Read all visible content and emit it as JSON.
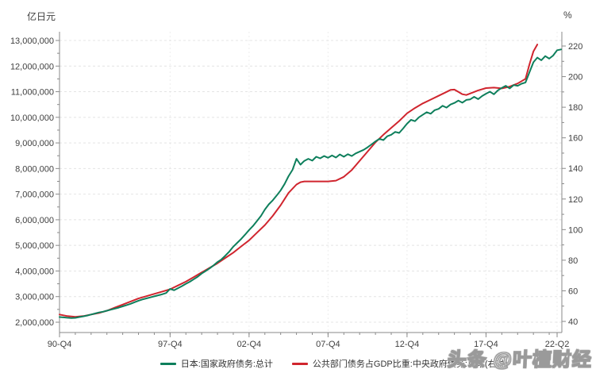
{
  "watermark": {
    "text": "头条 @叶檀财经"
  },
  "chart_data": {
    "type": "line",
    "title": "",
    "y_left_unit": "亿日元",
    "y_right_unit": "%",
    "x_range": [
      1990.75,
      2022.5
    ],
    "y_left_range": [
      2000000,
      13000000
    ],
    "y_right_range": [
      40,
      220
    ],
    "grid": "horizontal-dashed",
    "legend_position": "bottom-center",
    "colors": {
      "series_left": "#0E7F5C",
      "series_right": "#D0252E",
      "grid": "#e4e4e4",
      "grid_vertical": "#ededed",
      "axis": "#8a8a8a",
      "text": "#404040"
    },
    "y_left_ticks": [
      {
        "v": 2000000,
        "label": "2,000,000"
      },
      {
        "v": 3000000,
        "label": "3,000,000"
      },
      {
        "v": 4000000,
        "label": "4,000,000"
      },
      {
        "v": 5000000,
        "label": "5,000,000"
      },
      {
        "v": 6000000,
        "label": "6,000,000"
      },
      {
        "v": 7000000,
        "label": "7,000,000"
      },
      {
        "v": 8000000,
        "label": "8,000,000"
      },
      {
        "v": 9000000,
        "label": "9,000,000"
      },
      {
        "v": 10000000,
        "label": "10,000,000"
      },
      {
        "v": 11000000,
        "label": "11,000,000"
      },
      {
        "v": 12000000,
        "label": "12,000,000"
      },
      {
        "v": 13000000,
        "label": "13,000,000"
      }
    ],
    "y_right_ticks": [
      {
        "v": 40,
        "label": "40"
      },
      {
        "v": 60,
        "label": "60"
      },
      {
        "v": 80,
        "label": "80"
      },
      {
        "v": 100,
        "label": "100"
      },
      {
        "v": 120,
        "label": "120"
      },
      {
        "v": 140,
        "label": "140"
      },
      {
        "v": 160,
        "label": "160"
      },
      {
        "v": 180,
        "label": "180"
      },
      {
        "v": 200,
        "label": "200"
      },
      {
        "v": 220,
        "label": "220"
      }
    ],
    "x_ticks": [
      {
        "t": 1990.75,
        "label": "90-Q4"
      },
      {
        "t": 1997.75,
        "label": "97-Q4"
      },
      {
        "t": 2002.75,
        "label": "02-Q4"
      },
      {
        "t": 2007.75,
        "label": "07-Q4"
      },
      {
        "t": 2012.75,
        "label": "12-Q4"
      },
      {
        "t": 2017.75,
        "label": "17-Q4"
      },
      {
        "t": 2022.25,
        "label": "22-Q2"
      }
    ],
    "series": [
      {
        "name": "公共部门债务占GDP比重:中央政府债务:日本(右轴)",
        "axis": "right",
        "color": "#D0252E",
        "points": [
          [
            1990.75,
            44.5
          ],
          [
            1991.25,
            43.5
          ],
          [
            1991.75,
            43
          ],
          [
            1992.25,
            43.5
          ],
          [
            1992.75,
            44.5
          ],
          [
            1993.25,
            45.5
          ],
          [
            1993.75,
            47
          ],
          [
            1994.25,
            49
          ],
          [
            1994.75,
            51
          ],
          [
            1995.25,
            53
          ],
          [
            1995.75,
            55
          ],
          [
            1996.25,
            56.5
          ],
          [
            1996.75,
            58
          ],
          [
            1997.25,
            59.5
          ],
          [
            1997.75,
            61
          ],
          [
            1998.25,
            63.5
          ],
          [
            1998.75,
            66
          ],
          [
            1999.25,
            69
          ],
          [
            1999.75,
            72
          ],
          [
            2000.25,
            75
          ],
          [
            2000.75,
            78
          ],
          [
            2001.25,
            81.5
          ],
          [
            2001.75,
            85
          ],
          [
            2002.25,
            89
          ],
          [
            2002.75,
            93
          ],
          [
            2003.25,
            98
          ],
          [
            2003.75,
            103
          ],
          [
            2004.25,
            109
          ],
          [
            2004.75,
            116
          ],
          [
            2005.25,
            124
          ],
          [
            2005.75,
            129.5
          ],
          [
            2006,
            131
          ],
          [
            2006.25,
            131.5
          ],
          [
            2006.75,
            131.5
          ],
          [
            2007.25,
            131.5
          ],
          [
            2007.75,
            131.5
          ],
          [
            2008.25,
            132
          ],
          [
            2008.75,
            134.5
          ],
          [
            2009.25,
            139
          ],
          [
            2009.75,
            145
          ],
          [
            2010.25,
            151
          ],
          [
            2010.75,
            157
          ],
          [
            2011.25,
            162
          ],
          [
            2011.75,
            166.5
          ],
          [
            2012.25,
            171
          ],
          [
            2012.75,
            176
          ],
          [
            2013.25,
            179.5
          ],
          [
            2013.75,
            182.5
          ],
          [
            2014.25,
            185
          ],
          [
            2014.75,
            187.5
          ],
          [
            2015.25,
            190
          ],
          [
            2015.5,
            191.3
          ],
          [
            2015.75,
            191.5
          ],
          [
            2016,
            190
          ],
          [
            2016.25,
            188.5
          ],
          [
            2016.5,
            188
          ],
          [
            2016.75,
            189
          ],
          [
            2017.25,
            191
          ],
          [
            2017.75,
            192.5
          ],
          [
            2018.25,
            192.8
          ],
          [
            2018.75,
            192.3
          ],
          [
            2019.25,
            193.5
          ],
          [
            2019.75,
            195.5
          ],
          [
            2020,
            197
          ],
          [
            2020.25,
            198.5
          ],
          [
            2020.5,
            208
          ],
          [
            2020.75,
            216.5
          ],
          [
            2021,
            221
          ]
        ]
      },
      {
        "name": "日本:国家政府债务:总计",
        "axis": "left",
        "color": "#0E7F5C",
        "points": [
          [
            1990.75,
            2200000
          ],
          [
            1991,
            2190000
          ],
          [
            1991.25,
            2175000
          ],
          [
            1991.5,
            2165000
          ],
          [
            1991.75,
            2170000
          ],
          [
            1992,
            2200000
          ],
          [
            1992.25,
            2230000
          ],
          [
            1992.5,
            2260000
          ],
          [
            1992.75,
            2300000
          ],
          [
            1993,
            2340000
          ],
          [
            1993.25,
            2380000
          ],
          [
            1993.5,
            2410000
          ],
          [
            1993.75,
            2450000
          ],
          [
            1994,
            2490000
          ],
          [
            1994.25,
            2530000
          ],
          [
            1994.5,
            2570000
          ],
          [
            1994.75,
            2620000
          ],
          [
            1995,
            2670000
          ],
          [
            1995.25,
            2720000
          ],
          [
            1995.5,
            2780000
          ],
          [
            1995.75,
            2840000
          ],
          [
            1996,
            2890000
          ],
          [
            1996.25,
            2930000
          ],
          [
            1996.5,
            2970000
          ],
          [
            1996.75,
            3010000
          ],
          [
            1997,
            3050000
          ],
          [
            1997.25,
            3090000
          ],
          [
            1997.5,
            3140000
          ],
          [
            1997.75,
            3300000
          ],
          [
            1998,
            3250000
          ],
          [
            1998.25,
            3330000
          ],
          [
            1998.5,
            3410000
          ],
          [
            1998.75,
            3500000
          ],
          [
            1999,
            3580000
          ],
          [
            1999.25,
            3680000
          ],
          [
            1999.5,
            3780000
          ],
          [
            1999.75,
            3900000
          ],
          [
            2000,
            4000000
          ],
          [
            2000.25,
            4100000
          ],
          [
            2000.5,
            4220000
          ],
          [
            2000.75,
            4350000
          ],
          [
            2001,
            4450000
          ],
          [
            2001.25,
            4600000
          ],
          [
            2001.5,
            4760000
          ],
          [
            2001.75,
            4950000
          ],
          [
            2002,
            5100000
          ],
          [
            2002.25,
            5250000
          ],
          [
            2002.5,
            5420000
          ],
          [
            2002.75,
            5600000
          ],
          [
            2003,
            5760000
          ],
          [
            2003.25,
            5950000
          ],
          [
            2003.5,
            6150000
          ],
          [
            2003.75,
            6400000
          ],
          [
            2004,
            6600000
          ],
          [
            2004.25,
            6760000
          ],
          [
            2004.5,
            6950000
          ],
          [
            2004.75,
            7150000
          ],
          [
            2005,
            7400000
          ],
          [
            2005.25,
            7700000
          ],
          [
            2005.5,
            7950000
          ],
          [
            2005.75,
            8380000
          ],
          [
            2006,
            8150000
          ],
          [
            2006.25,
            8300000
          ],
          [
            2006.5,
            8380000
          ],
          [
            2006.75,
            8310000
          ],
          [
            2007,
            8460000
          ],
          [
            2007.25,
            8400000
          ],
          [
            2007.5,
            8490000
          ],
          [
            2007.75,
            8420000
          ],
          [
            2008,
            8510000
          ],
          [
            2008.25,
            8430000
          ],
          [
            2008.5,
            8550000
          ],
          [
            2008.75,
            8460000
          ],
          [
            2009,
            8560000
          ],
          [
            2009.25,
            8490000
          ],
          [
            2009.5,
            8590000
          ],
          [
            2009.75,
            8660000
          ],
          [
            2010,
            8730000
          ],
          [
            2010.25,
            8830000
          ],
          [
            2010.5,
            8940000
          ],
          [
            2010.75,
            9060000
          ],
          [
            2011,
            9160000
          ],
          [
            2011.25,
            9110000
          ],
          [
            2011.5,
            9260000
          ],
          [
            2011.75,
            9320000
          ],
          [
            2012,
            9430000
          ],
          [
            2012.25,
            9390000
          ],
          [
            2012.5,
            9560000
          ],
          [
            2012.75,
            9750000
          ],
          [
            2013,
            9900000
          ],
          [
            2013.25,
            9850000
          ],
          [
            2013.5,
            10000000
          ],
          [
            2013.75,
            10100000
          ],
          [
            2014,
            10200000
          ],
          [
            2014.25,
            10140000
          ],
          [
            2014.5,
            10280000
          ],
          [
            2014.75,
            10330000
          ],
          [
            2015,
            10450000
          ],
          [
            2015.25,
            10380000
          ],
          [
            2015.5,
            10500000
          ],
          [
            2015.75,
            10560000
          ],
          [
            2016,
            10650000
          ],
          [
            2016.25,
            10570000
          ],
          [
            2016.5,
            10680000
          ],
          [
            2016.75,
            10700000
          ],
          [
            2017,
            10800000
          ],
          [
            2017.25,
            10710000
          ],
          [
            2017.5,
            10830000
          ],
          [
            2017.75,
            10920000
          ],
          [
            2018,
            11000000
          ],
          [
            2018.25,
            10900000
          ],
          [
            2018.5,
            11050000
          ],
          [
            2018.75,
            11150000
          ],
          [
            2019,
            11230000
          ],
          [
            2019.25,
            11130000
          ],
          [
            2019.5,
            11260000
          ],
          [
            2019.75,
            11230000
          ],
          [
            2020,
            11310000
          ],
          [
            2020.25,
            11360000
          ],
          [
            2020.5,
            11760000
          ],
          [
            2020.75,
            12150000
          ],
          [
            2021,
            12330000
          ],
          [
            2021.25,
            12230000
          ],
          [
            2021.5,
            12390000
          ],
          [
            2021.75,
            12290000
          ],
          [
            2022,
            12410000
          ],
          [
            2022.25,
            12620000
          ],
          [
            2022.5,
            12650000
          ]
        ]
      }
    ],
    "legend": [
      {
        "label": "日本:国家政府债务:总计",
        "color": "#0E7F5C"
      },
      {
        "label": "公共部门债务占GDP比重:中央政府债务:日本(右轴)",
        "color": "#D0252E"
      }
    ]
  }
}
